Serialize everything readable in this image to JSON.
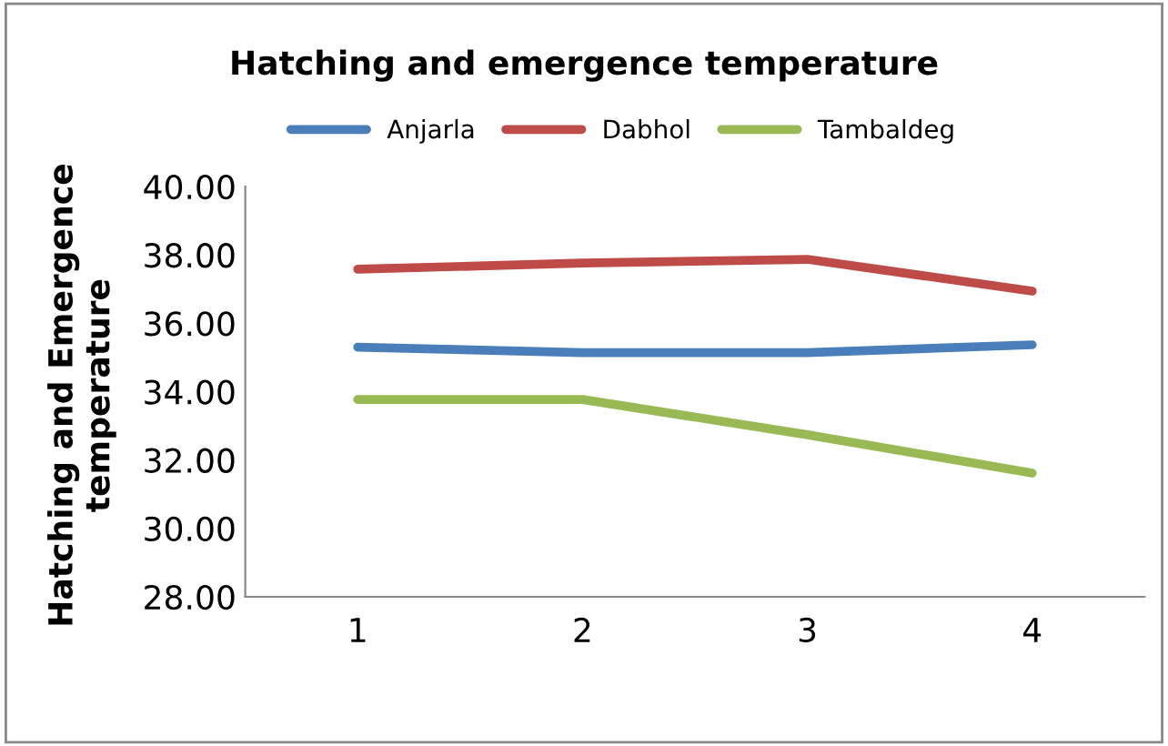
{
  "chart_data": {
    "type": "line",
    "title": "Hatching and emergence temperature",
    "ylabel": "Hatching and Emergence\ntemperature",
    "categories": [
      "1",
      "2",
      "3",
      "4"
    ],
    "series": [
      {
        "name": "Anjarla",
        "color": "#4a7ebb",
        "values": [
          35.3,
          35.14,
          35.14,
          35.37
        ]
      },
      {
        "name": "Dabhol",
        "color": "#be4b48",
        "values": [
          37.58,
          37.76,
          37.87,
          36.94
        ]
      },
      {
        "name": "Tambaldeg",
        "color": "#98b954",
        "values": [
          33.77,
          33.77,
          32.74,
          31.62
        ]
      }
    ],
    "ylim": [
      28,
      40
    ],
    "yticks": [
      {
        "value": 28,
        "label": "28.00"
      },
      {
        "value": 30,
        "label": "30.00"
      },
      {
        "value": 32,
        "label": "32.00"
      },
      {
        "value": 34,
        "label": "34.00"
      },
      {
        "value": 36,
        "label": "36.00"
      },
      {
        "value": 38,
        "label": "38.00"
      },
      {
        "value": 40,
        "label": "40.00"
      }
    ],
    "grid": false,
    "legend": "top",
    "marker": "none",
    "line_style": "solid"
  }
}
